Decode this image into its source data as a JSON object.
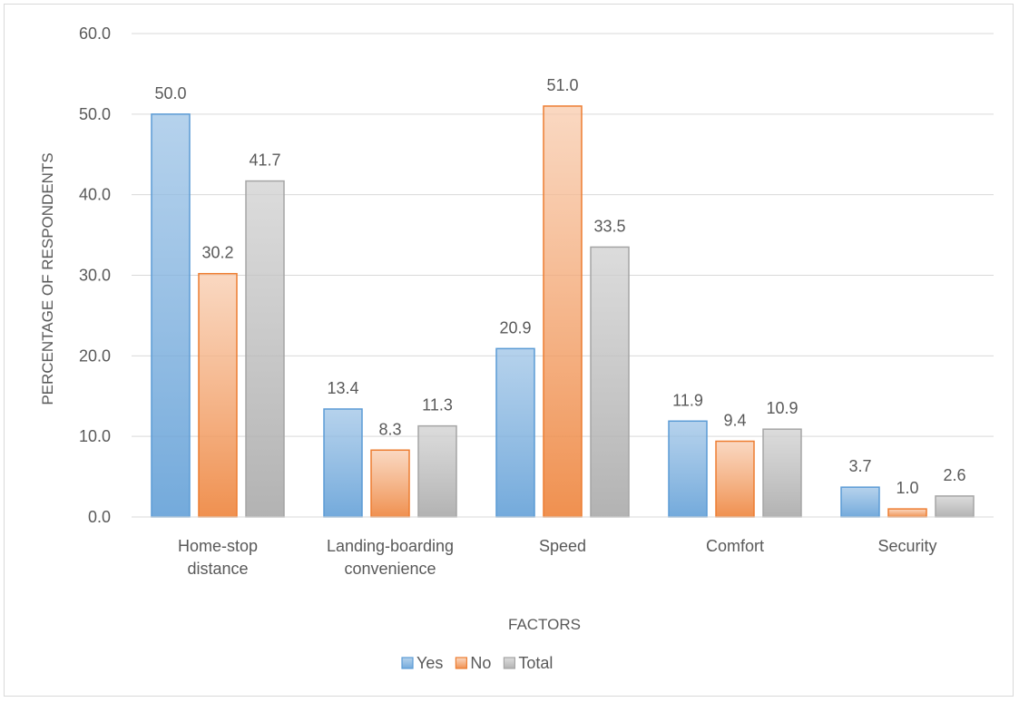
{
  "chart_data": {
    "type": "bar",
    "title": "",
    "xlabel": "FACTORS",
    "ylabel": "PERCENTAGE OF RESPONDENTS",
    "ylim": [
      0,
      60
    ],
    "yticks": [
      "0.0",
      "10.0",
      "20.0",
      "30.0",
      "40.0",
      "50.0",
      "60.0"
    ],
    "grid": true,
    "legend_position": "bottom",
    "categories": [
      [
        "Home-stop",
        "distance"
      ],
      [
        "Landing-boarding",
        "convenience"
      ],
      [
        "Speed"
      ],
      [
        "Comfort"
      ],
      [
        "Security"
      ]
    ],
    "series": [
      {
        "name": "Yes",
        "values": [
          50.0,
          13.4,
          20.9,
          11.9,
          3.7
        ],
        "labels": [
          "50.0",
          "13.4",
          "20.9",
          "11.9",
          "3.7"
        ],
        "color": "#9dc3e6",
        "stroke": "#5b9bd5"
      },
      {
        "name": "No",
        "values": [
          30.2,
          8.3,
          51.0,
          9.4,
          1.0
        ],
        "labels": [
          "30.2",
          "8.3",
          "51.0",
          "9.4",
          "1.0"
        ],
        "color": "#f8cbad",
        "stroke": "#ed7d31"
      },
      {
        "name": "Total",
        "values": [
          41.7,
          11.3,
          33.5,
          10.9,
          2.6
        ],
        "labels": [
          "41.7",
          "11.3",
          "33.5",
          "10.9",
          "2.6"
        ],
        "color": "#d0d0d0",
        "stroke": "#a5a5a5"
      }
    ]
  }
}
